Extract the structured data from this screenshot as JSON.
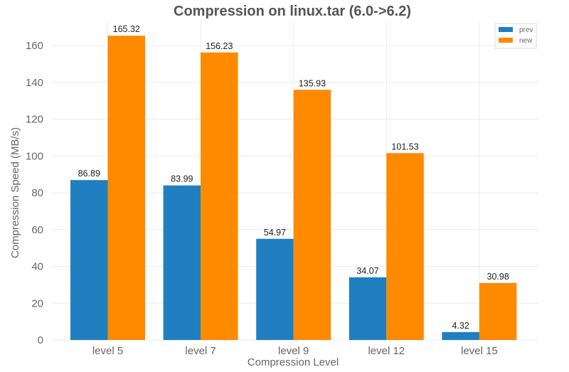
{
  "chart_data": {
    "type": "bar",
    "title": "Compression on linux.tar (6.0->6.2)",
    "xlabel": "Compression Level",
    "ylabel": "Compression Speed (MB/s)",
    "categories": [
      "level 5",
      "level 7",
      "level 9",
      "level 12",
      "level 15"
    ],
    "series": [
      {
        "name": "prev",
        "color": "#1f7fc0",
        "values": [
          86.89,
          83.99,
          54.97,
          34.07,
          4.32
        ]
      },
      {
        "name": "new",
        "color": "#ff8a00",
        "values": [
          165.32,
          156.23,
          135.93,
          101.53,
          30.98
        ]
      }
    ],
    "value_labels": [
      [
        "86.89",
        "83.99",
        "54.97",
        "34.07",
        "4.32"
      ],
      [
        "165.32",
        "156.23",
        "135.93",
        "101.53",
        "30.98"
      ]
    ],
    "yticks": [
      0,
      20,
      40,
      60,
      80,
      100,
      120,
      140,
      160
    ],
    "ylim": [
      0,
      173
    ],
    "grid": true,
    "legend_position": "upper right"
  }
}
